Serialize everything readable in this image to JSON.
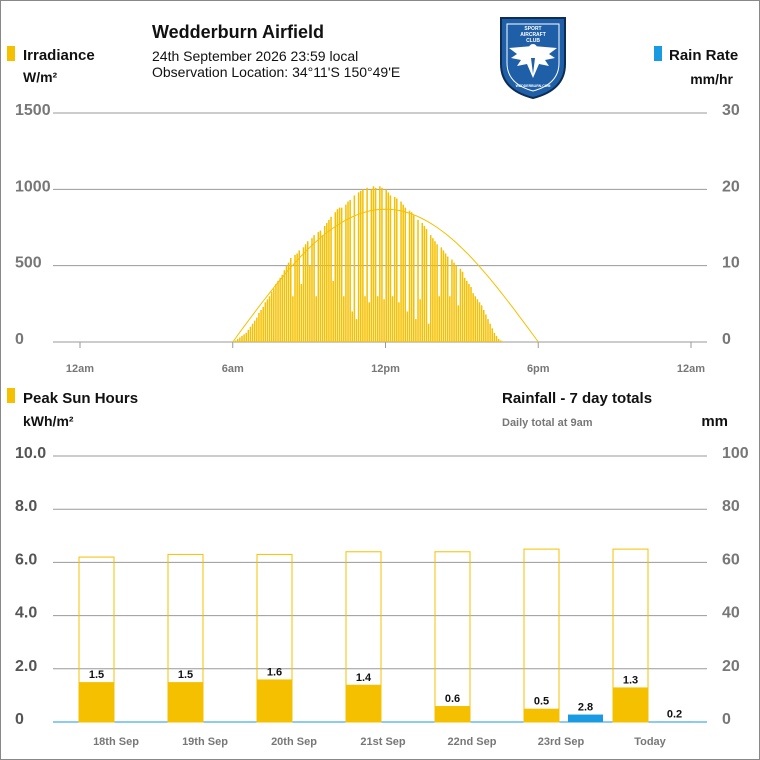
{
  "station": {
    "name": "Wedderburn Airfield",
    "datetime": "24th September 2026  23:59 local",
    "location": "Observation Location:  34°11'S 150°49'E",
    "logo_text": [
      "SPORT",
      "AIRCRAFT",
      "CLUB"
    ],
    "logo_bottom_text": "WEDDERBURN.COM"
  },
  "colors": {
    "irradiance": "#f5c000",
    "rain": "#1a9ae0",
    "grid": "#9a9a9a",
    "logo_blue": "#1f5fa8"
  },
  "chart_data": [
    {
      "type": "bar",
      "legend": {
        "left": "Irradiance",
        "left_unit": "W/m²",
        "right": "Rain Rate",
        "right_unit": "mm/hr"
      },
      "y_left": {
        "ticks": [
          "1500",
          "1000",
          "500",
          "0"
        ],
        "ylim": [
          0,
          1500
        ]
      },
      "y_right": {
        "ticks": [
          "30",
          "20",
          "10",
          "0"
        ],
        "ylim": [
          0,
          30
        ]
      },
      "x_ticks": [
        "12am",
        "6am",
        "12pm",
        "6pm",
        "12am"
      ],
      "x_range_hours": [
        0,
        24
      ],
      "irradiance_start_hour": 6.0,
      "irradiance_step_hours": 0.0833,
      "irradiance_values": [
        5,
        10,
        20,
        30,
        40,
        50,
        60,
        80,
        100,
        120,
        140,
        160,
        190,
        210,
        230,
        260,
        280,
        300,
        330,
        350,
        380,
        400,
        420,
        440,
        470,
        500,
        520,
        550,
        300,
        570,
        580,
        600,
        380,
        620,
        640,
        660,
        500,
        680,
        700,
        300,
        720,
        730,
        700,
        760,
        780,
        800,
        820,
        400,
        850,
        870,
        880,
        880,
        300,
        900,
        920,
        930,
        200,
        960,
        150,
        980,
        990,
        1000,
        300,
        1010,
        260,
        1000,
        1020,
        1010,
        300,
        1020,
        1010,
        280,
        1000,
        980,
        960,
        300,
        950,
        940,
        260,
        920,
        900,
        880,
        200,
        860,
        850,
        830,
        150,
        800,
        280,
        780,
        760,
        740,
        120,
        700,
        680,
        660,
        640,
        300,
        620,
        600,
        580,
        560,
        300,
        540,
        520,
        500,
        240,
        480,
        460,
        420,
        400,
        380,
        360,
        320,
        300,
        280,
        260,
        240,
        210,
        180,
        150,
        120,
        90,
        60,
        40,
        20,
        10,
        5,
        0
      ],
      "clear_sky_curve": {
        "peak_value": 870,
        "start_hour": 6.0,
        "end_hour": 18.0
      },
      "rain_rate_values": []
    },
    {
      "type": "bar",
      "legend": {
        "left": "Peak Sun Hours",
        "left_unit": "kWh/m²",
        "right": "Rainfall - 7 day totals",
        "right_sub": "Daily total at 9am",
        "right_unit": "mm"
      },
      "y_left": {
        "ticks": [
          "10.0",
          "8.0",
          "6.0",
          "4.0",
          "2.0",
          "0"
        ],
        "ylim": [
          0,
          10
        ]
      },
      "y_right": {
        "ticks": [
          "100",
          "80",
          "60",
          "40",
          "20",
          "0"
        ],
        "ylim": [
          0,
          100
        ]
      },
      "categories": [
        "18th Sep",
        "19th Sep",
        "20th Sep",
        "21st Sep",
        "22nd Sep",
        "23rd Sep",
        "Today"
      ],
      "series": [
        {
          "name": "Peak Sun Hours",
          "values": [
            1.5,
            1.5,
            1.6,
            1.4,
            0.6,
            0.5,
            1.3
          ],
          "labels": [
            "1.5",
            "1.5",
            "1.6",
            "1.4",
            "0.6",
            "0.5",
            "1.3"
          ]
        },
        {
          "name": "Rainfall",
          "values": [
            0,
            0,
            0,
            0,
            0,
            2.8,
            0.2
          ],
          "labels": [
            "",
            "",
            "",
            "",
            "",
            "2.8",
            "0.2"
          ]
        }
      ],
      "clear_sky_max": [
        6.2,
        6.3,
        6.3,
        6.4,
        6.4,
        6.5,
        6.5
      ]
    }
  ]
}
